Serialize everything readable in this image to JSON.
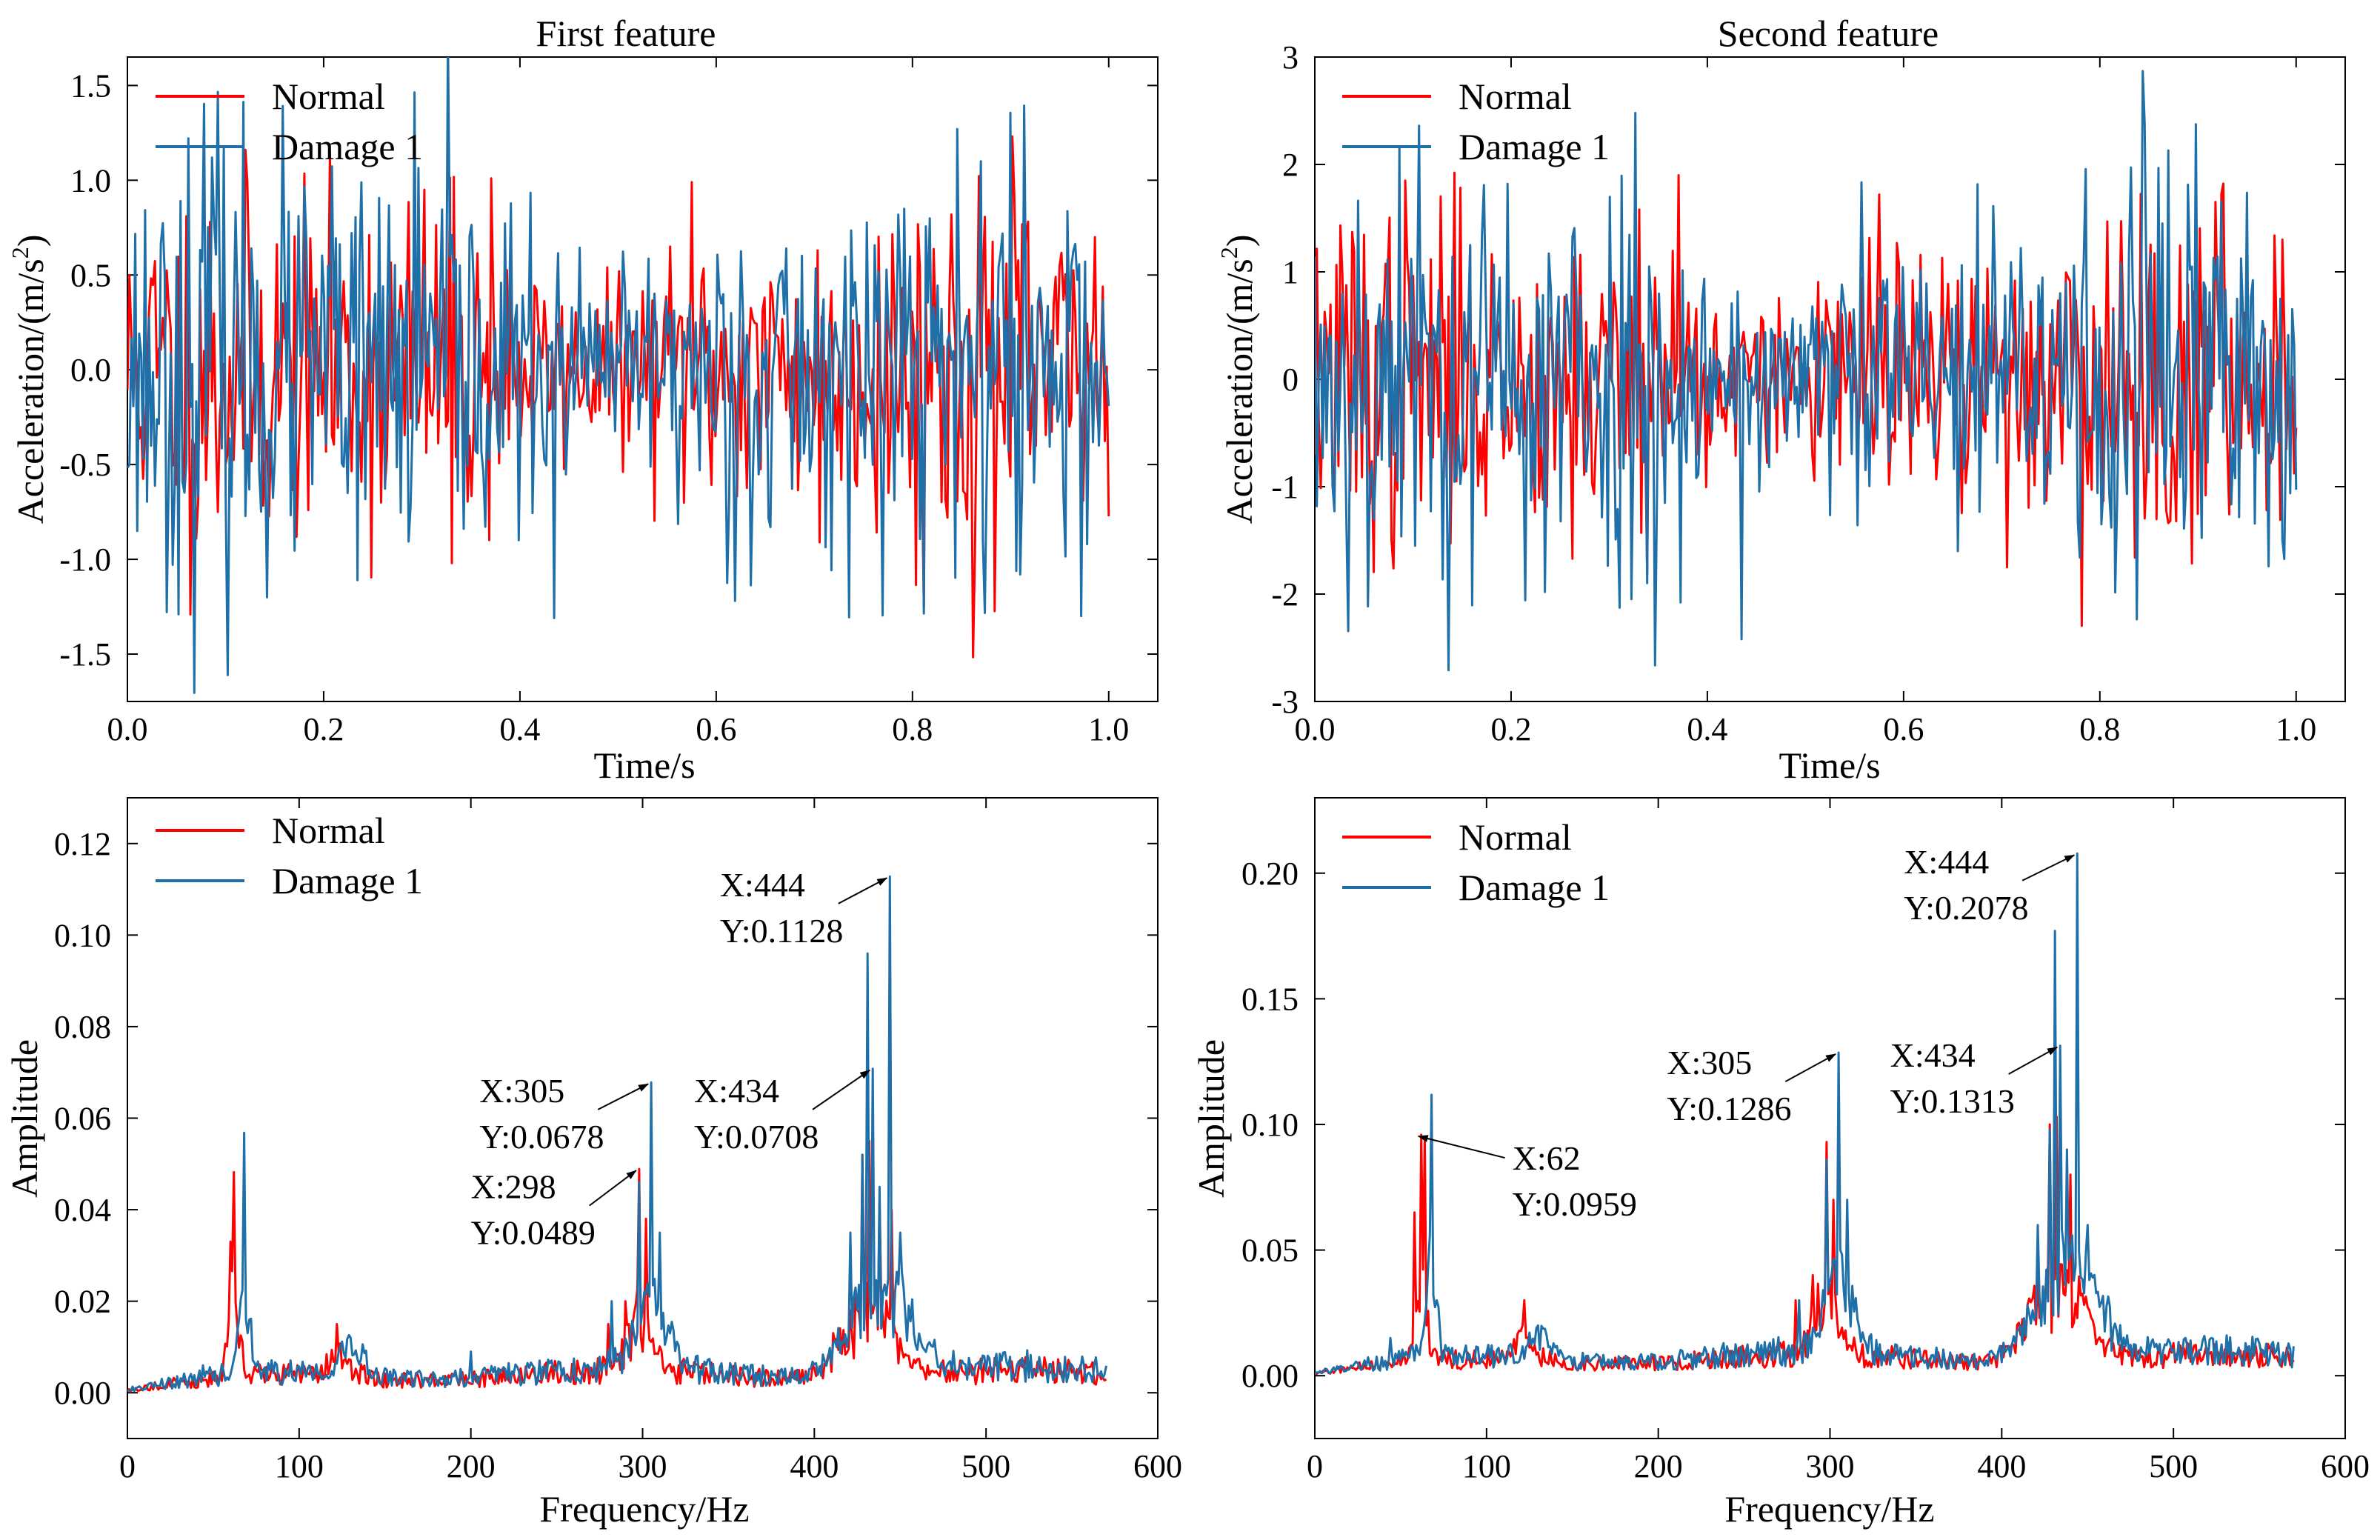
{
  "colors": {
    "normal": "#ff0000",
    "damage": "#1f6fa8",
    "axis": "#000000",
    "annotation": "#000000"
  },
  "chart_data": [
    {
      "id": "p1",
      "type": "line",
      "title": "First feature",
      "xlabel": "Time/s",
      "ylabel_main": "Acceleration/(m/s",
      "ylabel_sup": "2",
      "ylabel_close": ")",
      "xlim": [
        0,
        1.05
      ],
      "ylim": [
        -1.75,
        1.65
      ],
      "xticks": [
        0,
        0.2,
        0.4,
        0.6,
        0.8,
        1.0
      ],
      "xtick_labels": [
        "0.0",
        "0.2",
        "0.4",
        "0.6",
        "0.8",
        "1.0"
      ],
      "yticks": [
        -1.5,
        -1.0,
        -0.5,
        0.0,
        0.5,
        1.0,
        1.5
      ],
      "ytick_labels": [
        "-1.5",
        "-1.0",
        "-0.5",
        "0.0",
        "0.5",
        "1.0",
        "1.5"
      ],
      "legend": [
        "Normal",
        "Damage 1"
      ],
      "series": [
        {
          "name": "Normal",
          "color_key": "normal",
          "kind": "noise",
          "n": 500,
          "x_max": 1.0,
          "seed": 11,
          "amp": 0.45,
          "peaks": [
            [
              0.33,
              -1.02
            ],
            [
              0.37,
              1.01
            ],
            [
              0.575,
              0.99
            ],
            [
              0.705,
              -0.91
            ],
            [
              0.985,
              0.7
            ],
            [
              0.99,
              -0.35
            ]
          ]
        },
        {
          "name": "Damage 1",
          "color_key": "damage",
          "kind": "noise",
          "n": 500,
          "x_max": 1.0,
          "seed": 23,
          "amp": 0.55,
          "peaks": [
            [
              0.087,
              1.12
            ],
            [
              0.235,
              -1.11
            ],
            [
              0.435,
              -1.31
            ],
            [
              0.845,
              1.27
            ],
            [
              0.87,
              1.1
            ],
            [
              0.655,
              -0.83
            ]
          ]
        }
      ]
    },
    {
      "id": "p2",
      "type": "line",
      "title": "Second feature",
      "xlabel": "Time/s",
      "ylabel_main": "Acceleration/(m/s",
      "ylabel_sup": "2",
      "ylabel_close": ")",
      "xlim": [
        0,
        1.05
      ],
      "ylim": [
        -3,
        3
      ],
      "xticks": [
        0,
        0.2,
        0.4,
        0.6,
        0.8,
        1.0
      ],
      "xtick_labels": [
        "0.0",
        "0.2",
        "0.4",
        "0.6",
        "0.8",
        "1.0"
      ],
      "yticks": [
        -3,
        -2,
        -1,
        0,
        1,
        2,
        3
      ],
      "ytick_labels": [
        "-3",
        "-2",
        "-1",
        "0",
        "1",
        "2",
        "3"
      ],
      "legend": [
        "Normal",
        "Damage 1"
      ],
      "series": [
        {
          "name": "Normal",
          "color_key": "normal",
          "kind": "noise",
          "n": 500,
          "x_max": 1.0,
          "seed": 37,
          "amp": 0.75,
          "peaks": [
            [
              0.33,
              1.58
            ],
            [
              0.37,
              1.9
            ],
            [
              0.575,
              1.72
            ],
            [
              0.705,
              -1.75
            ],
            [
              0.985,
              1.3
            ],
            [
              0.99,
              -0.65
            ]
          ]
        },
        {
          "name": "Damage 1",
          "color_key": "damage",
          "kind": "noise",
          "n": 500,
          "x_max": 1.0,
          "seed": 53,
          "amp": 0.95,
          "peaks": [
            [
              0.087,
              2.17
            ],
            [
              0.235,
              -1.98
            ],
            [
              0.435,
              -2.42
            ],
            [
              0.845,
              2.38
            ],
            [
              0.87,
              2.13
            ],
            [
              0.655,
              -1.6
            ]
          ]
        }
      ]
    },
    {
      "id": "p3",
      "type": "line",
      "title": "",
      "xlabel": "Frequency/Hz",
      "ylabel_main": "Amplitude",
      "ylabel_sup": "",
      "ylabel_close": "",
      "xlim": [
        0,
        600
      ],
      "ylim": [
        -0.01,
        0.13
      ],
      "xticks": [
        0,
        100,
        200,
        300,
        400,
        500,
        600
      ],
      "xtick_labels": [
        "0",
        "100",
        "200",
        "300",
        "400",
        "500",
        "600"
      ],
      "yticks": [
        0,
        0.02,
        0.04,
        0.06,
        0.08,
        0.1,
        0.12
      ],
      "ytick_labels": [
        "0.00",
        "0.02",
        "0.04",
        "0.06",
        "0.08",
        "0.10",
        "0.12"
      ],
      "legend": [
        "Normal",
        "Damage 1"
      ],
      "series": [
        {
          "name": "Normal",
          "color_key": "normal",
          "kind": "spectrum",
          "n": 571,
          "x_max": 570,
          "seed": 71,
          "base": 0.0035,
          "scale": 1.0,
          "bands": [
            [
              62,
              3,
              0.018
            ],
            [
              122,
              4,
              0.006
            ],
            [
              298,
              7,
              0.012
            ],
            [
              432,
              16,
              0.014
            ]
          ],
          "peaks": [
            [
              60,
              0.033
            ],
            [
              62,
              0.0482
            ],
            [
              122,
              0.015
            ],
            [
              280,
              0.015
            ],
            [
              290,
              0.02
            ],
            [
              298,
              0.0489
            ],
            [
              302,
              0.038
            ],
            [
              421,
              0.018
            ],
            [
              428,
              0.052
            ],
            [
              432,
              0.055
            ],
            [
              438,
              0.042
            ],
            [
              445,
              0.04
            ]
          ]
        },
        {
          "name": "Damage 1",
          "color_key": "damage",
          "kind": "spectrum",
          "n": 571,
          "x_max": 570,
          "seed": 89,
          "base": 0.004,
          "scale": 1.0,
          "bands": [
            [
              68,
              3,
              0.02
            ],
            [
              130,
              6,
              0.006
            ],
            [
              305,
              8,
              0.016
            ],
            [
              438,
              18,
              0.018
            ]
          ],
          "peaks": [
            [
              44,
              0.006
            ],
            [
              68,
              0.0568
            ],
            [
              71,
              0.016
            ],
            [
              130,
              0.012
            ],
            [
              200,
              0.009
            ],
            [
              282,
              0.02
            ],
            [
              298,
              0.046
            ],
            [
              305,
              0.0678
            ],
            [
              310,
              0.035
            ],
            [
              421,
              0.035
            ],
            [
              428,
              0.052
            ],
            [
              431,
              0.096
            ],
            [
              434,
              0.0708
            ],
            [
              438,
              0.045
            ],
            [
              444,
              0.1128
            ],
            [
              450,
              0.035
            ]
          ]
        }
      ],
      "annotations": [
        {
          "lines": [
            "X:444",
            "Y:0.1128"
          ],
          "point": [
            444,
            0.1128
          ],
          "text_at": [
            345,
            0.1085
          ]
        },
        {
          "lines": [
            "X:434",
            "Y:0.0708"
          ],
          "point": [
            434,
            0.0708
          ],
          "text_at": [
            330,
            0.0635
          ]
        },
        {
          "lines": [
            "X:305",
            "Y:0.0678"
          ],
          "point": [
            305,
            0.0678
          ],
          "text_at": [
            205,
            0.0635
          ]
        },
        {
          "lines": [
            "X:298",
            "Y:0.0489"
          ],
          "point": [
            298,
            0.0489
          ],
          "text_at": [
            200,
            0.0425
          ]
        }
      ]
    },
    {
      "id": "p4",
      "type": "line",
      "title": "",
      "xlabel": "Frequency/Hz",
      "ylabel_main": "Amplitude",
      "ylabel_sup": "",
      "ylabel_close": "",
      "xlim": [
        0,
        600
      ],
      "ylim": [
        -0.025,
        0.23
      ],
      "xticks": [
        0,
        100,
        200,
        300,
        400,
        500,
        600
      ],
      "xtick_labels": [
        "0",
        "100",
        "200",
        "300",
        "400",
        "500",
        "600"
      ],
      "yticks": [
        0,
        0.05,
        0.1,
        0.15,
        0.2
      ],
      "ytick_labels": [
        "0.00",
        "0.05",
        "0.10",
        "0.15",
        "0.20"
      ],
      "legend": [
        "Normal",
        "Damage 1"
      ],
      "series": [
        {
          "name": "Normal",
          "color_key": "normal",
          "kind": "spectrum",
          "n": 571,
          "x_max": 570,
          "seed": 101,
          "base": 0.006,
          "scale": 1.0,
          "bands": [
            [
              62,
              3,
              0.03
            ],
            [
              122,
              4,
              0.01
            ],
            [
              298,
              7,
              0.025
            ],
            [
              432,
              16,
              0.03
            ]
          ],
          "peaks": [
            [
              58,
              0.065
            ],
            [
              62,
              0.0959
            ],
            [
              64,
              0.095
            ],
            [
              122,
              0.03
            ],
            [
              280,
              0.03
            ],
            [
              290,
              0.04
            ],
            [
              298,
              0.093
            ],
            [
              302,
              0.07
            ],
            [
              421,
              0.04
            ],
            [
              428,
              0.1
            ],
            [
              432,
              0.103
            ],
            [
              440,
              0.08
            ]
          ]
        },
        {
          "name": "Damage 1",
          "color_key": "damage",
          "kind": "spectrum",
          "n": 571,
          "x_max": 570,
          "seed": 127,
          "base": 0.007,
          "scale": 1.0,
          "bands": [
            [
              68,
              3,
              0.035
            ],
            [
              130,
              6,
              0.01
            ],
            [
              305,
              8,
              0.03
            ],
            [
              438,
              18,
              0.035
            ]
          ],
          "peaks": [
            [
              44,
              0.015
            ],
            [
              68,
              0.1118
            ],
            [
              71,
              0.03
            ],
            [
              130,
              0.02
            ],
            [
              282,
              0.03
            ],
            [
              298,
              0.086
            ],
            [
              305,
              0.1286
            ],
            [
              310,
              0.07
            ],
            [
              421,
              0.06
            ],
            [
              428,
              0.098
            ],
            [
              431,
              0.177
            ],
            [
              434,
              0.1313
            ],
            [
              438,
              0.09
            ],
            [
              444,
              0.2078
            ],
            [
              450,
              0.06
            ]
          ]
        }
      ],
      "annotations": [
        {
          "lines": [
            "X:444",
            "Y:0.2078"
          ],
          "point": [
            444,
            0.2078
          ],
          "text_at": [
            343,
            0.2
          ],
          "tip": [
            444,
            0.2078
          ]
        },
        {
          "lines": [
            "X:434",
            "Y:0.1313"
          ],
          "point": [
            434,
            0.1313
          ],
          "text_at": [
            335,
            0.123
          ]
        },
        {
          "lines": [
            "X:305",
            "Y:0.1286"
          ],
          "point": [
            305,
            0.1286
          ],
          "text_at": [
            205,
            0.12
          ]
        },
        {
          "lines": [
            "X:62",
            "Y:0.0959"
          ],
          "point": [
            62,
            0.0959
          ],
          "text_at": [
            115,
            0.082
          ],
          "tail_left": true
        }
      ]
    }
  ]
}
